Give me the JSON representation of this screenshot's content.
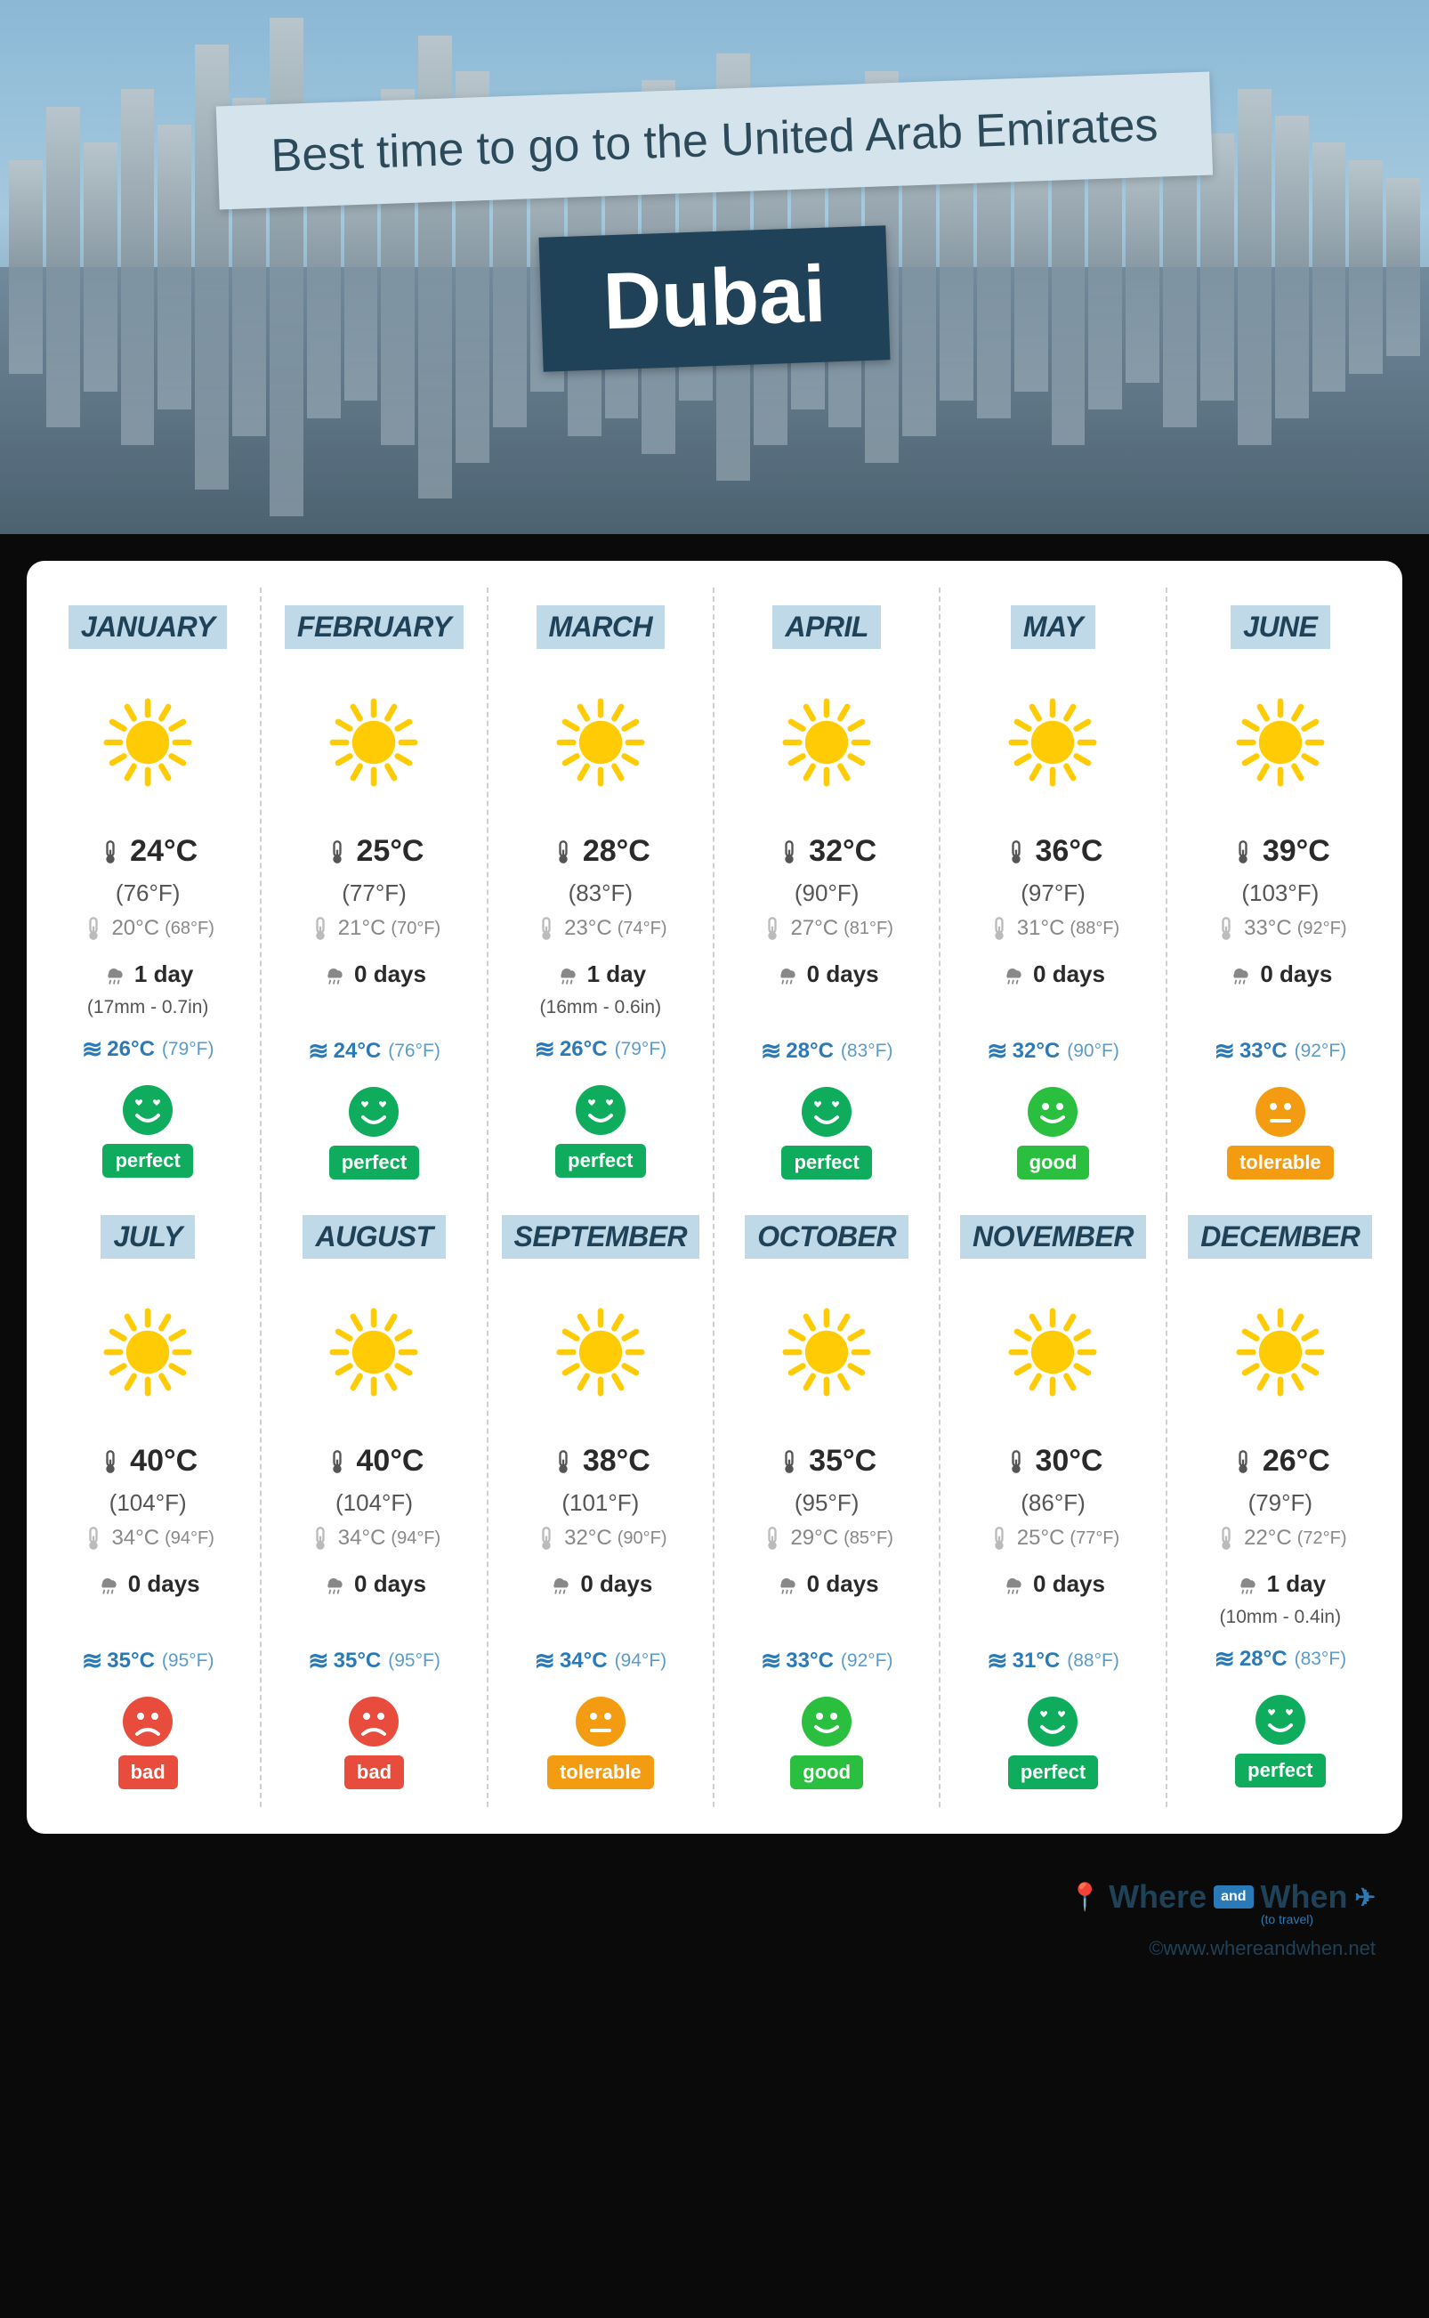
{
  "header": {
    "title": "Best time to go to the United Arab Emirates",
    "city": "Dubai"
  },
  "colors": {
    "title_bg": "#d4e3ec",
    "title_fg": "#2d4a5a",
    "city_bg": "#1f4258",
    "city_fg": "#ffffff",
    "month_bg": "#bfd9e8",
    "month_fg": "#1f4258",
    "sea": "#2a7ab8",
    "perfect": "#0eac5c",
    "good": "#2bbf3f",
    "tolerable": "#f39c12",
    "bad": "#e74c3c",
    "sun": "#ffcb05"
  },
  "ratings": {
    "perfect": {
      "label": "perfect",
      "face": "heart-eyes"
    },
    "good": {
      "label": "good",
      "face": "smile"
    },
    "tolerable": {
      "label": "tolerable",
      "face": "neutral"
    },
    "bad": {
      "label": "bad",
      "face": "frown"
    }
  },
  "months": [
    {
      "name": "JANUARY",
      "high_c": "24°C",
      "high_f": "(76°F)",
      "low_c": "20°C",
      "low_f": "(68°F)",
      "rain_days": "1 day",
      "rain_amount": "(17mm - 0.7in)",
      "sea_c": "26°C",
      "sea_f": "(79°F)",
      "rating": "perfect"
    },
    {
      "name": "FEBRUARY",
      "high_c": "25°C",
      "high_f": "(77°F)",
      "low_c": "21°C",
      "low_f": "(70°F)",
      "rain_days": "0 days",
      "rain_amount": "",
      "sea_c": "24°C",
      "sea_f": "(76°F)",
      "rating": "perfect"
    },
    {
      "name": "MARCH",
      "high_c": "28°C",
      "high_f": "(83°F)",
      "low_c": "23°C",
      "low_f": "(74°F)",
      "rain_days": "1 day",
      "rain_amount": "(16mm - 0.6in)",
      "sea_c": "26°C",
      "sea_f": "(79°F)",
      "rating": "perfect"
    },
    {
      "name": "APRIL",
      "high_c": "32°C",
      "high_f": "(90°F)",
      "low_c": "27°C",
      "low_f": "(81°F)",
      "rain_days": "0 days",
      "rain_amount": "",
      "sea_c": "28°C",
      "sea_f": "(83°F)",
      "rating": "perfect"
    },
    {
      "name": "MAY",
      "high_c": "36°C",
      "high_f": "(97°F)",
      "low_c": "31°C",
      "low_f": "(88°F)",
      "rain_days": "0 days",
      "rain_amount": "",
      "sea_c": "32°C",
      "sea_f": "(90°F)",
      "rating": "good"
    },
    {
      "name": "JUNE",
      "high_c": "39°C",
      "high_f": "(103°F)",
      "low_c": "33°C",
      "low_f": "(92°F)",
      "rain_days": "0 days",
      "rain_amount": "",
      "sea_c": "33°C",
      "sea_f": "(92°F)",
      "rating": "tolerable"
    },
    {
      "name": "JULY",
      "high_c": "40°C",
      "high_f": "(104°F)",
      "low_c": "34°C",
      "low_f": "(94°F)",
      "rain_days": "0 days",
      "rain_amount": "",
      "sea_c": "35°C",
      "sea_f": "(95°F)",
      "rating": "bad"
    },
    {
      "name": "AUGUST",
      "high_c": "40°C",
      "high_f": "(104°F)",
      "low_c": "34°C",
      "low_f": "(94°F)",
      "rain_days": "0 days",
      "rain_amount": "",
      "sea_c": "35°C",
      "sea_f": "(95°F)",
      "rating": "bad"
    },
    {
      "name": "SEPTEMBER",
      "high_c": "38°C",
      "high_f": "(101°F)",
      "low_c": "32°C",
      "low_f": "(90°F)",
      "rain_days": "0 days",
      "rain_amount": "",
      "sea_c": "34°C",
      "sea_f": "(94°F)",
      "rating": "tolerable"
    },
    {
      "name": "OCTOBER",
      "high_c": "35°C",
      "high_f": "(95°F)",
      "low_c": "29°C",
      "low_f": "(85°F)",
      "rain_days": "0 days",
      "rain_amount": "",
      "sea_c": "33°C",
      "sea_f": "(92°F)",
      "rating": "good"
    },
    {
      "name": "NOVEMBER",
      "high_c": "30°C",
      "high_f": "(86°F)",
      "low_c": "25°C",
      "low_f": "(77°F)",
      "rain_days": "0 days",
      "rain_amount": "",
      "sea_c": "31°C",
      "sea_f": "(88°F)",
      "rating": "perfect"
    },
    {
      "name": "DECEMBER",
      "high_c": "26°C",
      "high_f": "(79°F)",
      "low_c": "22°C",
      "low_f": "(72°F)",
      "rain_days": "1 day",
      "rain_amount": "(10mm - 0.4in)",
      "sea_c": "28°C",
      "sea_f": "(83°F)",
      "rating": "perfect"
    }
  ],
  "footer": {
    "brand_1": "Where",
    "brand_and": "and",
    "brand_2": "When",
    "subtitle": "(to travel)",
    "url": "©www.whereandwhen.net"
  },
  "skyline_heights": [
    120,
    180,
    140,
    200,
    160,
    250,
    190,
    280,
    170,
    150,
    200,
    260,
    220,
    180,
    140,
    190,
    170,
    210,
    150,
    240,
    200,
    160,
    180,
    220,
    190,
    150,
    170,
    140,
    200,
    160,
    130,
    180,
    150,
    200,
    170,
    140,
    120,
    100
  ]
}
